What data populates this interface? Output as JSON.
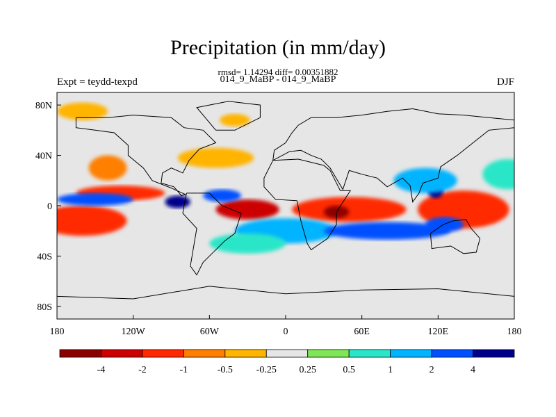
{
  "title": "Precipitation (in mm/day)",
  "stats": "rmsd= 1.14294 diff= 0.00351882",
  "case_label": "014_9_MaBP - 014_9_MaBP",
  "left_label": "Expt = teydd-texpd",
  "right_label": "DJF",
  "map": {
    "projection": "cylindrical-equidistant",
    "lon_range": [
      -180,
      180
    ],
    "lat_range": [
      -90,
      90
    ],
    "background_color": "#e6e6e6",
    "lon_ticks": [
      "180",
      "120W",
      "60W",
      "0",
      "60E",
      "120E",
      "180"
    ],
    "lat_ticks": [
      "80N",
      "40N",
      "0",
      "40S",
      "80S"
    ]
  },
  "colorbar": {
    "colors": [
      "#8b0000",
      "#cc0000",
      "#ff2a00",
      "#ff7f00",
      "#ffb400",
      "#e6e6e6",
      "#7fe657",
      "#29e6c8",
      "#00b4ff",
      "#0050ff",
      "#00008b"
    ],
    "labels": [
      "-4",
      "-2",
      "-1",
      "-0.5",
      "-0.25",
      "0.25",
      "0.5",
      "1",
      "2",
      "4"
    ]
  },
  "features": [
    {
      "lon": 150,
      "lat": -5,
      "rx": 18,
      "ry": 8,
      "level": 0
    },
    {
      "lon": 140,
      "lat": -3,
      "rx": 36,
      "ry": 15,
      "level": 2
    },
    {
      "lon": 118,
      "lat": 12,
      "rx": 6,
      "ry": 6,
      "level": 10
    },
    {
      "lon": 125,
      "lat": -15,
      "rx": 15,
      "ry": 6,
      "level": 9
    },
    {
      "lon": 110,
      "lat": 20,
      "rx": 25,
      "ry": 10,
      "level": 8
    },
    {
      "lon": 50,
      "lat": -3,
      "rx": 45,
      "ry": 10,
      "level": 2
    },
    {
      "lon": 40,
      "lat": -5,
      "rx": 10,
      "ry": 5,
      "level": 0
    },
    {
      "lon": -30,
      "lat": -3,
      "rx": 25,
      "ry": 8,
      "level": 1
    },
    {
      "lon": -50,
      "lat": 8,
      "rx": 15,
      "ry": 5,
      "level": 9
    },
    {
      "lon": -85,
      "lat": 3,
      "rx": 10,
      "ry": 5,
      "level": 10
    },
    {
      "lon": -130,
      "lat": 10,
      "rx": 35,
      "ry": 6,
      "level": 2
    },
    {
      "lon": -165,
      "lat": -10,
      "rx": 25,
      "ry": 7,
      "level": 0
    },
    {
      "lon": -160,
      "lat": -12,
      "rx": 35,
      "ry": 12,
      "level": 2
    },
    {
      "lon": -140,
      "lat": 30,
      "rx": 15,
      "ry": 10,
      "level": 3
    },
    {
      "lon": -55,
      "lat": 38,
      "rx": 30,
      "ry": 8,
      "level": 4
    },
    {
      "lon": -160,
      "lat": 75,
      "rx": 20,
      "ry": 7,
      "level": 4
    },
    {
      "lon": -40,
      "lat": 68,
      "rx": 12,
      "ry": 5,
      "level": 4
    },
    {
      "lon": 0,
      "lat": -20,
      "rx": 40,
      "ry": 10,
      "level": 8
    },
    {
      "lon": 80,
      "lat": -20,
      "rx": 50,
      "ry": 7,
      "level": 9
    },
    {
      "lon": -30,
      "lat": -30,
      "rx": 30,
      "ry": 8,
      "level": 7
    },
    {
      "lon": -150,
      "lat": 5,
      "rx": 30,
      "ry": 5,
      "level": 9
    },
    {
      "lon": 175,
      "lat": 25,
      "rx": 20,
      "ry": 12,
      "level": 7
    }
  ]
}
